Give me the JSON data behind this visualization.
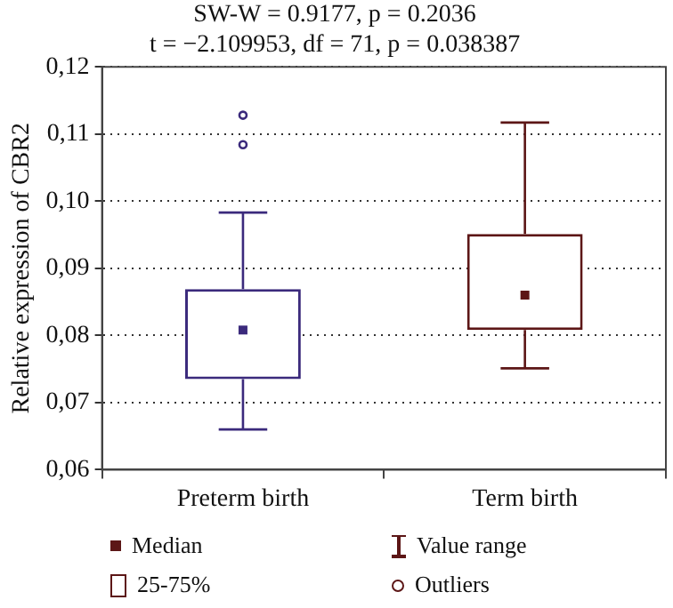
{
  "chart_data": {
    "type": "box",
    "title": "SW-W = 0.9177, p = 0.2036",
    "subtitle": "t = −2.109953, df = 71, p = 0.038387",
    "ylabel": "Relative expression of CBR2",
    "categories": [
      "Preterm birth",
      "Term birth"
    ],
    "colors": [
      "#3b2a7c",
      "#5c1616"
    ],
    "boxes": [
      {
        "low": 0.066,
        "q1": 0.0735,
        "median": 0.0808,
        "q3": 0.0869,
        "high": 0.0983,
        "outliers": [
          0.1084,
          0.1128
        ]
      },
      {
        "low": 0.0751,
        "q1": 0.0808,
        "median": 0.086,
        "q3": 0.0951,
        "high": 0.1117
      }
    ],
    "ylim": [
      0.06,
      0.12
    ],
    "yticks": [
      {
        "value": 0.06,
        "label": "0,06"
      },
      {
        "value": 0.07,
        "label": "0,07"
      },
      {
        "value": 0.08,
        "label": "0,08"
      },
      {
        "value": 0.09,
        "label": "0,09"
      },
      {
        "value": 0.1,
        "label": "0,10"
      },
      {
        "value": 0.11,
        "label": "0,11"
      },
      {
        "value": 0.12,
        "label": "0,12"
      }
    ],
    "grid": "y",
    "annotations": [
      "Median",
      "25-75%",
      "Value range",
      "Outliers"
    ]
  }
}
